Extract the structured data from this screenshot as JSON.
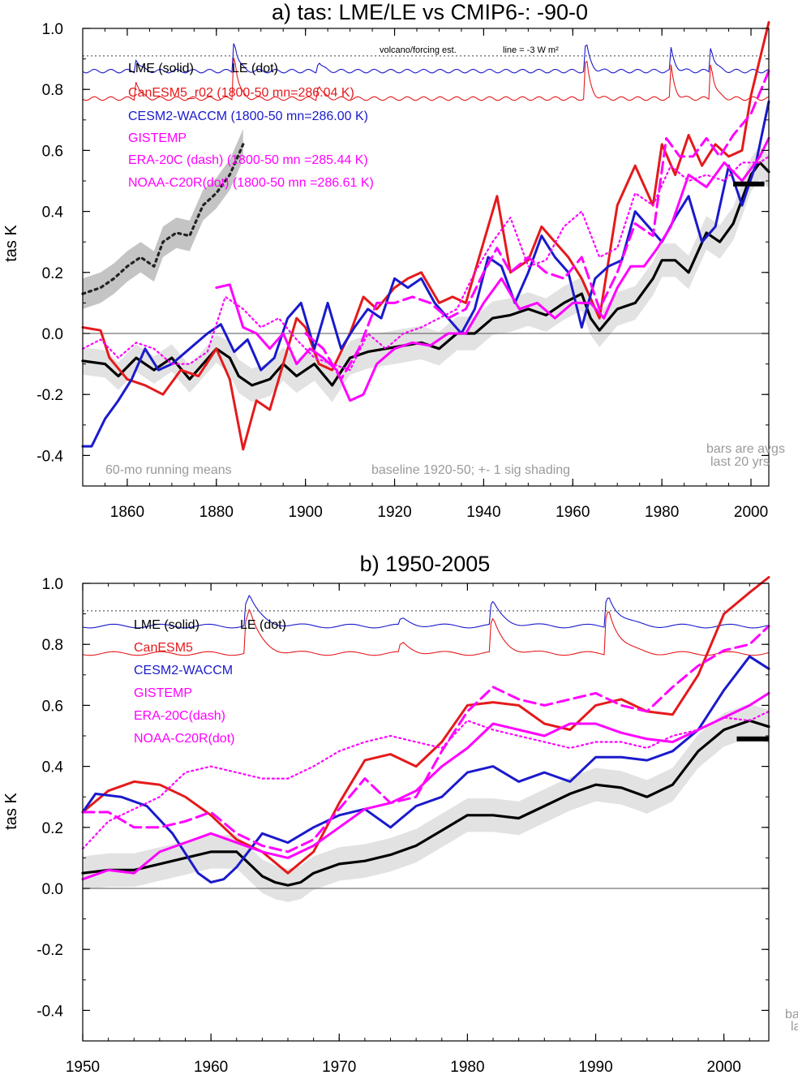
{
  "chart_data": [
    {
      "type": "line",
      "title": "a) tas: LME/LE vs CMIP6-: -90-0",
      "xlabel": "",
      "ylabel": "tas K",
      "xlim": [
        1850,
        2004
      ],
      "ylim": [
        -0.5,
        1.0
      ],
      "x_ticks": [
        "1860",
        "1880",
        "1900",
        "1920",
        "1940",
        "1960",
        "1980",
        "2000"
      ],
      "y_ticks": [
        "1.0",
        "0.8",
        "0.6",
        "0.4",
        "0.2",
        "0.0",
        "-0.2",
        "-0.4"
      ],
      "volcano_label": "volcano/forcing est.",
      "volcano_line_label": "line = -3 W m²",
      "volcano_ref_level": 0.91,
      "legend": {
        "lme": "LME (solid)",
        "le": "LE (dot)",
        "canesm": "CanESM5_r02 (1800-50 mn=286.04 K)",
        "cesm": "CESM2-WACCM (1800-50 mn=286.00 K)",
        "gistemp": "GISTEMP",
        "era": "ERA-20C (dash) (1800-50 mn =285.44 K)",
        "noaa": "NOAA-C20R(dot) (1800-50 mn =286.61 K)"
      },
      "notes": {
        "running": "60-mo running means",
        "baseline": "baseline 1920-50; +- 1 sig shading",
        "bars1": "bars are avgs",
        "bars2": "last 20 yrs"
      },
      "colors": {
        "lme": "#000000",
        "canesm": "#e41a1c",
        "cesm": "#1a1acc",
        "obs": "#ff00ff",
        "shade": "#e2e2e2",
        "le_shade": "#c4c4c4"
      },
      "series": [
        {
          "name": "LME (solid)",
          "x": [
            1850,
            1855,
            1858,
            1862,
            1866,
            1870,
            1874,
            1877,
            1880,
            1883,
            1885,
            1888,
            1892,
            1895,
            1898,
            1902,
            1906,
            1910,
            1914,
            1918,
            1922,
            1926,
            1930,
            1934,
            1938,
            1942,
            1946,
            1950,
            1954,
            1958,
            1962,
            1964,
            1966,
            1970,
            1974,
            1978,
            1980,
            1983,
            1986,
            1990,
            1993,
            1996,
            2000,
            2002,
            2004
          ],
          "values": [
            -0.09,
            -0.1,
            -0.14,
            -0.08,
            -0.12,
            -0.08,
            -0.15,
            -0.1,
            -0.05,
            -0.08,
            -0.14,
            -0.17,
            -0.15,
            -0.1,
            -0.14,
            -0.1,
            -0.17,
            -0.08,
            -0.06,
            -0.05,
            -0.04,
            -0.03,
            -0.05,
            0.0,
            0.0,
            0.05,
            0.06,
            0.08,
            0.06,
            0.1,
            0.13,
            0.05,
            0.01,
            0.08,
            0.1,
            0.18,
            0.24,
            0.24,
            0.2,
            0.33,
            0.3,
            0.36,
            0.52,
            0.56,
            0.53
          ]
        },
        {
          "name": "CanESM5_r02",
          "x": [
            1850,
            1854,
            1856,
            1860,
            1864,
            1868,
            1872,
            1876,
            1880,
            1883,
            1886,
            1889,
            1892,
            1895,
            1898,
            1900,
            1903,
            1906,
            1910,
            1913,
            1916,
            1920,
            1923,
            1926,
            1930,
            1933,
            1936,
            1940,
            1943,
            1946,
            1950,
            1953,
            1956,
            1959,
            1962,
            1966,
            1970,
            1974,
            1978,
            1980,
            1983,
            1986,
            1989,
            1992,
            1995,
            1998,
            2000,
            2002,
            2004
          ],
          "values": [
            0.02,
            0.01,
            -0.08,
            -0.15,
            -0.17,
            -0.2,
            -0.12,
            -0.14,
            -0.05,
            -0.15,
            -0.38,
            -0.22,
            -0.25,
            -0.1,
            0.05,
            0.02,
            -0.1,
            -0.12,
            0.0,
            0.12,
            0.08,
            0.15,
            0.18,
            0.2,
            0.1,
            0.12,
            0.1,
            0.3,
            0.45,
            0.2,
            0.24,
            0.35,
            0.3,
            0.25,
            0.18,
            0.05,
            0.42,
            0.55,
            0.42,
            0.62,
            0.52,
            0.65,
            0.55,
            0.62,
            0.58,
            0.6,
            0.78,
            0.9,
            1.02
          ]
        },
        {
          "name": "CESM2-WACCM",
          "x": [
            1850,
            1852,
            1855,
            1858,
            1861,
            1864,
            1867,
            1870,
            1874,
            1878,
            1881,
            1884,
            1887,
            1890,
            1893,
            1896,
            1899,
            1902,
            1905,
            1908,
            1911,
            1914,
            1917,
            1920,
            1923,
            1926,
            1929,
            1932,
            1935,
            1938,
            1941,
            1944,
            1947,
            1950,
            1953,
            1956,
            1959,
            1962,
            1965,
            1968,
            1971,
            1974,
            1977,
            1980,
            1983,
            1986,
            1989,
            1992,
            1995,
            1998,
            2001,
            2004
          ],
          "values": [
            -0.37,
            -0.37,
            -0.28,
            -0.22,
            -0.15,
            -0.05,
            -0.12,
            -0.1,
            -0.05,
            0.0,
            0.03,
            -0.06,
            -0.02,
            -0.12,
            -0.08,
            0.05,
            0.1,
            -0.05,
            0.1,
            -0.05,
            0.02,
            0.08,
            0.05,
            0.18,
            0.15,
            0.18,
            0.1,
            0.05,
            0.0,
            0.08,
            0.25,
            0.22,
            0.1,
            0.2,
            0.32,
            0.25,
            0.2,
            0.02,
            0.18,
            0.22,
            0.24,
            0.4,
            0.35,
            0.3,
            0.38,
            0.45,
            0.3,
            0.35,
            0.55,
            0.42,
            0.55,
            0.76
          ]
        },
        {
          "name": "GISTEMP",
          "x": [
            1880,
            1883,
            1886,
            1889,
            1892,
            1895,
            1898,
            1901,
            1904,
            1907,
            1910,
            1913,
            1916,
            1920,
            1924,
            1928,
            1932,
            1936,
            1940,
            1944,
            1948,
            1952,
            1956,
            1960,
            1964,
            1967,
            1970,
            1973,
            1976,
            1979,
            1982,
            1986,
            1990,
            1994,
            1998,
            2002,
            2004
          ],
          "values": [
            0.15,
            0.16,
            0.02,
            0.0,
            -0.05,
            0.0,
            -0.1,
            -0.05,
            -0.08,
            -0.12,
            -0.22,
            -0.2,
            -0.1,
            -0.05,
            -0.03,
            -0.04,
            0.0,
            0.0,
            0.1,
            0.18,
            0.08,
            0.1,
            0.05,
            0.1,
            0.1,
            0.05,
            0.15,
            0.22,
            0.22,
            0.28,
            0.35,
            0.52,
            0.48,
            0.56,
            0.5,
            0.58,
            0.64
          ]
        },
        {
          "name": "ERA-20C (dash)",
          "x": [
            1900,
            1904,
            1908,
            1912,
            1916,
            1920,
            1924,
            1928,
            1932,
            1936,
            1940,
            1943,
            1946,
            1950,
            1954,
            1958,
            1962,
            1966,
            1970,
            1974,
            1978,
            1981,
            1984,
            1987,
            1990,
            1993,
            1996,
            2000,
            2004
          ],
          "values": [
            0.0,
            -0.05,
            -0.15,
            -0.05,
            0.1,
            0.1,
            0.12,
            0.1,
            0.05,
            0.08,
            0.2,
            0.28,
            0.2,
            0.25,
            0.2,
            0.18,
            0.25,
            0.08,
            0.2,
            0.36,
            0.32,
            0.64,
            0.58,
            0.58,
            0.64,
            0.58,
            0.65,
            0.72,
            0.86
          ]
        },
        {
          "name": "NOAA-C20R(dot)",
          "x": [
            1850,
            1854,
            1858,
            1862,
            1866,
            1870,
            1874,
            1878,
            1882,
            1886,
            1890,
            1894,
            1898,
            1902,
            1906,
            1910,
            1914,
            1918,
            1922,
            1926,
            1930,
            1934,
            1938,
            1942,
            1946,
            1950,
            1954,
            1958,
            1962,
            1966,
            1970,
            1974,
            1978,
            1982,
            1986,
            1990,
            1994,
            1998,
            2002,
            2004
          ],
          "values": [
            -0.05,
            -0.02,
            -0.08,
            -0.03,
            -0.05,
            -0.1,
            -0.1,
            -0.06,
            0.12,
            0.08,
            0.02,
            0.05,
            -0.02,
            -0.08,
            -0.1,
            -0.12,
            0.0,
            -0.05,
            0.0,
            0.02,
            0.05,
            0.08,
            0.2,
            0.3,
            0.38,
            0.22,
            0.24,
            0.35,
            0.4,
            0.25,
            0.28,
            0.46,
            0.42,
            0.55,
            0.5,
            0.52,
            0.5,
            0.56,
            0.56,
            0.58
          ]
        },
        {
          "name": "LE (dot)",
          "x": [
            1850,
            1854,
            1857,
            1860,
            1863,
            1866,
            1868,
            1871,
            1874,
            1877,
            1880,
            1883,
            1886
          ],
          "values": [
            0.13,
            0.15,
            0.18,
            0.22,
            0.25,
            0.22,
            0.3,
            0.33,
            0.32,
            0.42,
            0.46,
            0.52,
            0.62
          ]
        }
      ],
      "bar_value": 0.49,
      "bar_range": [
        1996,
        2003
      ]
    },
    {
      "type": "line",
      "title": "b) 1950-2005",
      "xlabel": "",
      "ylabel": "tas K",
      "xlim": [
        1950,
        2003.5
      ],
      "ylim": [
        -0.5,
        1.0
      ],
      "x_ticks": [
        "1950",
        "1960",
        "1970",
        "1980",
        "1990",
        "2000"
      ],
      "y_ticks": [
        "1.0",
        "0.8",
        "0.6",
        "0.4",
        "0.2",
        "0.0",
        "-0.2",
        "-0.4"
      ],
      "volcano_ref_level": 0.91,
      "legend": {
        "lme": "LME (solid)",
        "le": "LE (dot)",
        "canesm": "CanESM5",
        "cesm": "CESM2-WACCM",
        "gistemp": "GISTEMP",
        "era": "ERA-20C(dash)",
        "noaa": "NOAA-C20R(dot)"
      },
      "notes": {
        "bars1": "ba",
        "bars2": "la"
      },
      "series": [
        {
          "name": "LME (solid)",
          "x": [
            1950,
            1952,
            1954,
            1956,
            1958,
            1960,
            1962,
            1963,
            1964,
            1965,
            1966,
            1967,
            1968,
            1970,
            1972,
            1974,
            1976,
            1978,
            1980,
            1982,
            1984,
            1986,
            1988,
            1990,
            1992,
            1994,
            1996,
            1998,
            2000,
            2002,
            2003.5
          ],
          "values": [
            0.05,
            0.06,
            0.06,
            0.08,
            0.1,
            0.12,
            0.12,
            0.08,
            0.04,
            0.02,
            0.01,
            0.02,
            0.05,
            0.08,
            0.09,
            0.11,
            0.14,
            0.19,
            0.24,
            0.24,
            0.23,
            0.27,
            0.31,
            0.34,
            0.33,
            0.3,
            0.34,
            0.45,
            0.52,
            0.55,
            0.53
          ]
        },
        {
          "name": "CanESM5",
          "x": [
            1950,
            1952,
            1954,
            1956,
            1958,
            1960,
            1962,
            1964,
            1966,
            1968,
            1970,
            1972,
            1974,
            1976,
            1978,
            1980,
            1982,
            1984,
            1986,
            1988,
            1990,
            1992,
            1994,
            1996,
            1998,
            2000,
            2002,
            2003.5
          ],
          "values": [
            0.25,
            0.32,
            0.35,
            0.34,
            0.3,
            0.24,
            0.16,
            0.12,
            0.05,
            0.12,
            0.28,
            0.42,
            0.44,
            0.4,
            0.48,
            0.6,
            0.61,
            0.6,
            0.54,
            0.52,
            0.6,
            0.62,
            0.58,
            0.57,
            0.7,
            0.9,
            0.97,
            1.02
          ]
        },
        {
          "name": "CESM2-WACCM",
          "x": [
            1950,
            1951,
            1953,
            1955,
            1957,
            1959,
            1960,
            1961,
            1962,
            1964,
            1966,
            1968,
            1970,
            1972,
            1974,
            1976,
            1978,
            1980,
            1982,
            1984,
            1986,
            1988,
            1990,
            1992,
            1994,
            1996,
            1998,
            2000,
            2002,
            2003.5
          ],
          "values": [
            0.25,
            0.31,
            0.3,
            0.27,
            0.18,
            0.05,
            0.02,
            0.03,
            0.07,
            0.18,
            0.15,
            0.2,
            0.24,
            0.26,
            0.2,
            0.27,
            0.3,
            0.38,
            0.4,
            0.35,
            0.38,
            0.35,
            0.43,
            0.43,
            0.42,
            0.45,
            0.52,
            0.65,
            0.76,
            0.72
          ]
        },
        {
          "name": "GISTEMP",
          "x": [
            1950,
            1952,
            1954,
            1956,
            1958,
            1960,
            1962,
            1964,
            1966,
            1968,
            1970,
            1972,
            1974,
            1976,
            1978,
            1980,
            1982,
            1984,
            1986,
            1988,
            1990,
            1992,
            1994,
            1996,
            1998,
            2000,
            2002,
            2003.5
          ],
          "values": [
            0.03,
            0.06,
            0.05,
            0.12,
            0.15,
            0.18,
            0.15,
            0.12,
            0.1,
            0.14,
            0.2,
            0.26,
            0.28,
            0.32,
            0.4,
            0.46,
            0.54,
            0.52,
            0.5,
            0.54,
            0.54,
            0.51,
            0.49,
            0.48,
            0.52,
            0.56,
            0.6,
            0.64
          ]
        },
        {
          "name": "ERA-20C(dash)",
          "x": [
            1950,
            1952,
            1954,
            1956,
            1958,
            1960,
            1962,
            1964,
            1966,
            1968,
            1970,
            1972,
            1974,
            1976,
            1978,
            1980,
            1982,
            1984,
            1986,
            1988,
            1990,
            1992,
            1994,
            1996,
            1998,
            2000,
            2002,
            2003.5
          ],
          "values": [
            0.25,
            0.25,
            0.2,
            0.2,
            0.22,
            0.25,
            0.18,
            0.14,
            0.12,
            0.16,
            0.26,
            0.36,
            0.28,
            0.3,
            0.45,
            0.58,
            0.66,
            0.62,
            0.6,
            0.62,
            0.64,
            0.6,
            0.58,
            0.66,
            0.73,
            0.78,
            0.8,
            0.86
          ]
        },
        {
          "name": "NOAA-C20R(dot)",
          "x": [
            1950,
            1952,
            1954,
            1956,
            1958,
            1960,
            1962,
            1964,
            1966,
            1968,
            1970,
            1972,
            1974,
            1976,
            1978,
            1980,
            1982,
            1984,
            1986,
            1988,
            1990,
            1992,
            1994,
            1996,
            1998,
            2000,
            2002,
            2003.5
          ],
          "values": [
            0.13,
            0.22,
            0.26,
            0.3,
            0.38,
            0.4,
            0.38,
            0.36,
            0.36,
            0.4,
            0.45,
            0.48,
            0.5,
            0.48,
            0.46,
            0.55,
            0.52,
            0.5,
            0.48,
            0.46,
            0.48,
            0.48,
            0.46,
            0.5,
            0.52,
            0.56,
            0.55,
            0.58
          ]
        }
      ],
      "bar_value": 0.49,
      "bar_range": [
        2001,
        2003.5
      ]
    }
  ]
}
